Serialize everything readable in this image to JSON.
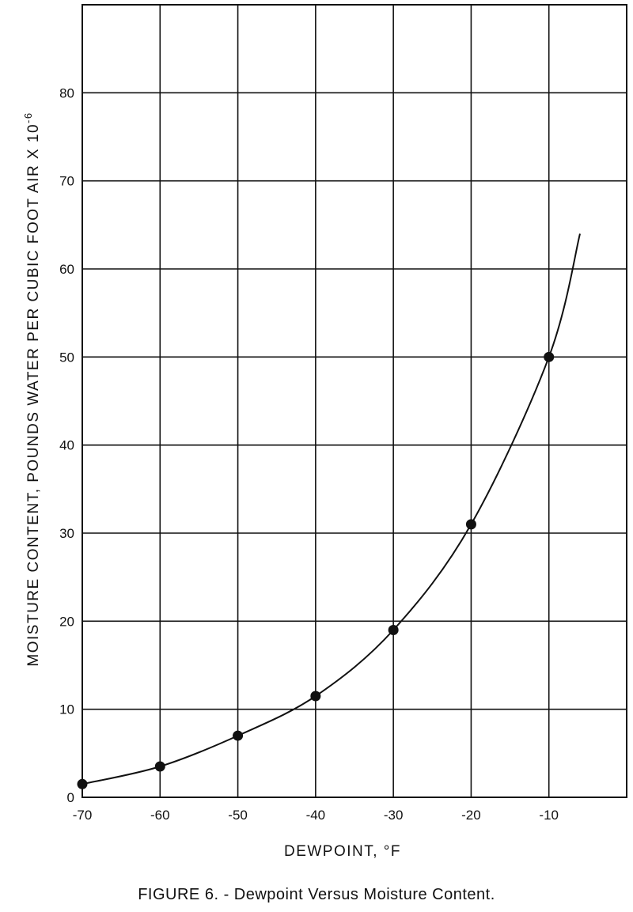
{
  "chart_data": {
    "type": "line",
    "title": "",
    "xlabel": "DEWPOINT, °F",
    "ylabel": "MOISTURE CONTENT, POUNDS WATER PER CUBIC FOOT AIR X 10",
    "ylabel_exponent": "-6",
    "xlim": [
      -70,
      0
    ],
    "ylim": [
      0,
      90
    ],
    "x_ticks": [
      -70,
      -60,
      -50,
      -40,
      -30,
      -20,
      -10
    ],
    "y_ticks": [
      0,
      10,
      20,
      30,
      40,
      50,
      60,
      70,
      80
    ],
    "grid": true,
    "legend": "none",
    "line_color": "#111111",
    "series": [
      {
        "points": [
          {
            "x": -70,
            "y": 1.5
          },
          {
            "x": -60,
            "y": 3.5
          },
          {
            "x": -50,
            "y": 7
          },
          {
            "x": -40,
            "y": 11.5
          },
          {
            "x": -30,
            "y": 19
          },
          {
            "x": -20,
            "y": 31
          },
          {
            "x": -10,
            "y": 50
          }
        ],
        "curve_extends_to": {
          "x": -6,
          "y": 64
        }
      }
    ]
  },
  "caption": "FIGURE 6. - Dewpoint Versus Moisture Content."
}
